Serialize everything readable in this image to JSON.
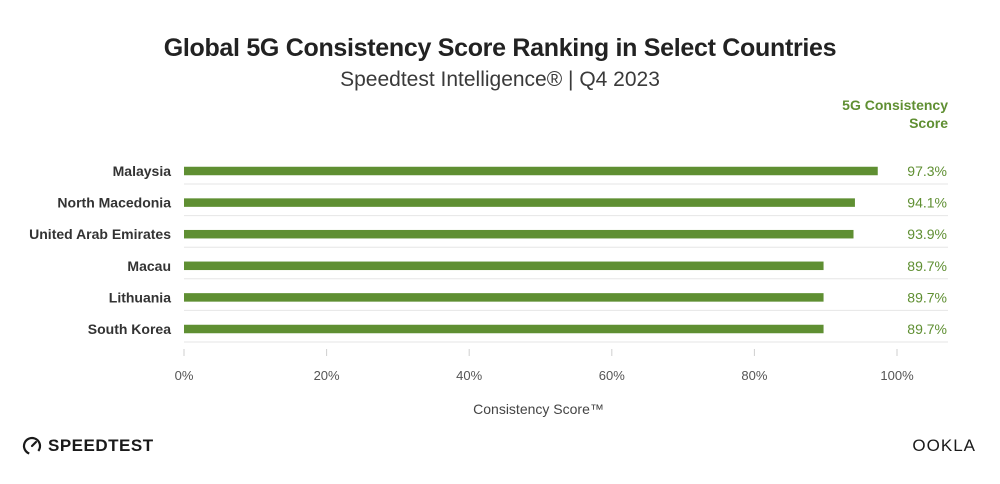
{
  "header": {
    "title": "Global 5G Consistency Score Ranking in Select Countries",
    "subtitle": "Speedtest Intelligence® | Q4 2023",
    "value_column_label": "5G Consistency Score"
  },
  "footer": {
    "left_logo_text": "SPEEDTEST",
    "right_logo_text": "OOKLA"
  },
  "colors": {
    "bar": "#5f8f32",
    "value_text": "#5f8f32",
    "grid": "#e6e6e6"
  },
  "chart_data": {
    "type": "bar",
    "orientation": "horizontal",
    "title": "Global 5G Consistency Score Ranking in Select Countries",
    "subtitle": "Speedtest Intelligence® | Q4 2023",
    "categories": [
      "Malaysia",
      "North Macedonia",
      "United Arab Emirates",
      "Macau",
      "Lithuania",
      "South Korea"
    ],
    "values": [
      97.3,
      94.1,
      93.9,
      89.7,
      89.7,
      89.7
    ],
    "value_labels": [
      "97.3%",
      "94.1%",
      "93.9%",
      "89.7%",
      "89.7%",
      "89.7%"
    ],
    "xlabel": "Consistency Score™",
    "xlim": [
      0,
      100
    ],
    "xticks": [
      0,
      20,
      40,
      60,
      80,
      100
    ],
    "xtick_labels": [
      "0%",
      "20%",
      "40%",
      "60%",
      "80%",
      "100%"
    ],
    "grid": true
  }
}
